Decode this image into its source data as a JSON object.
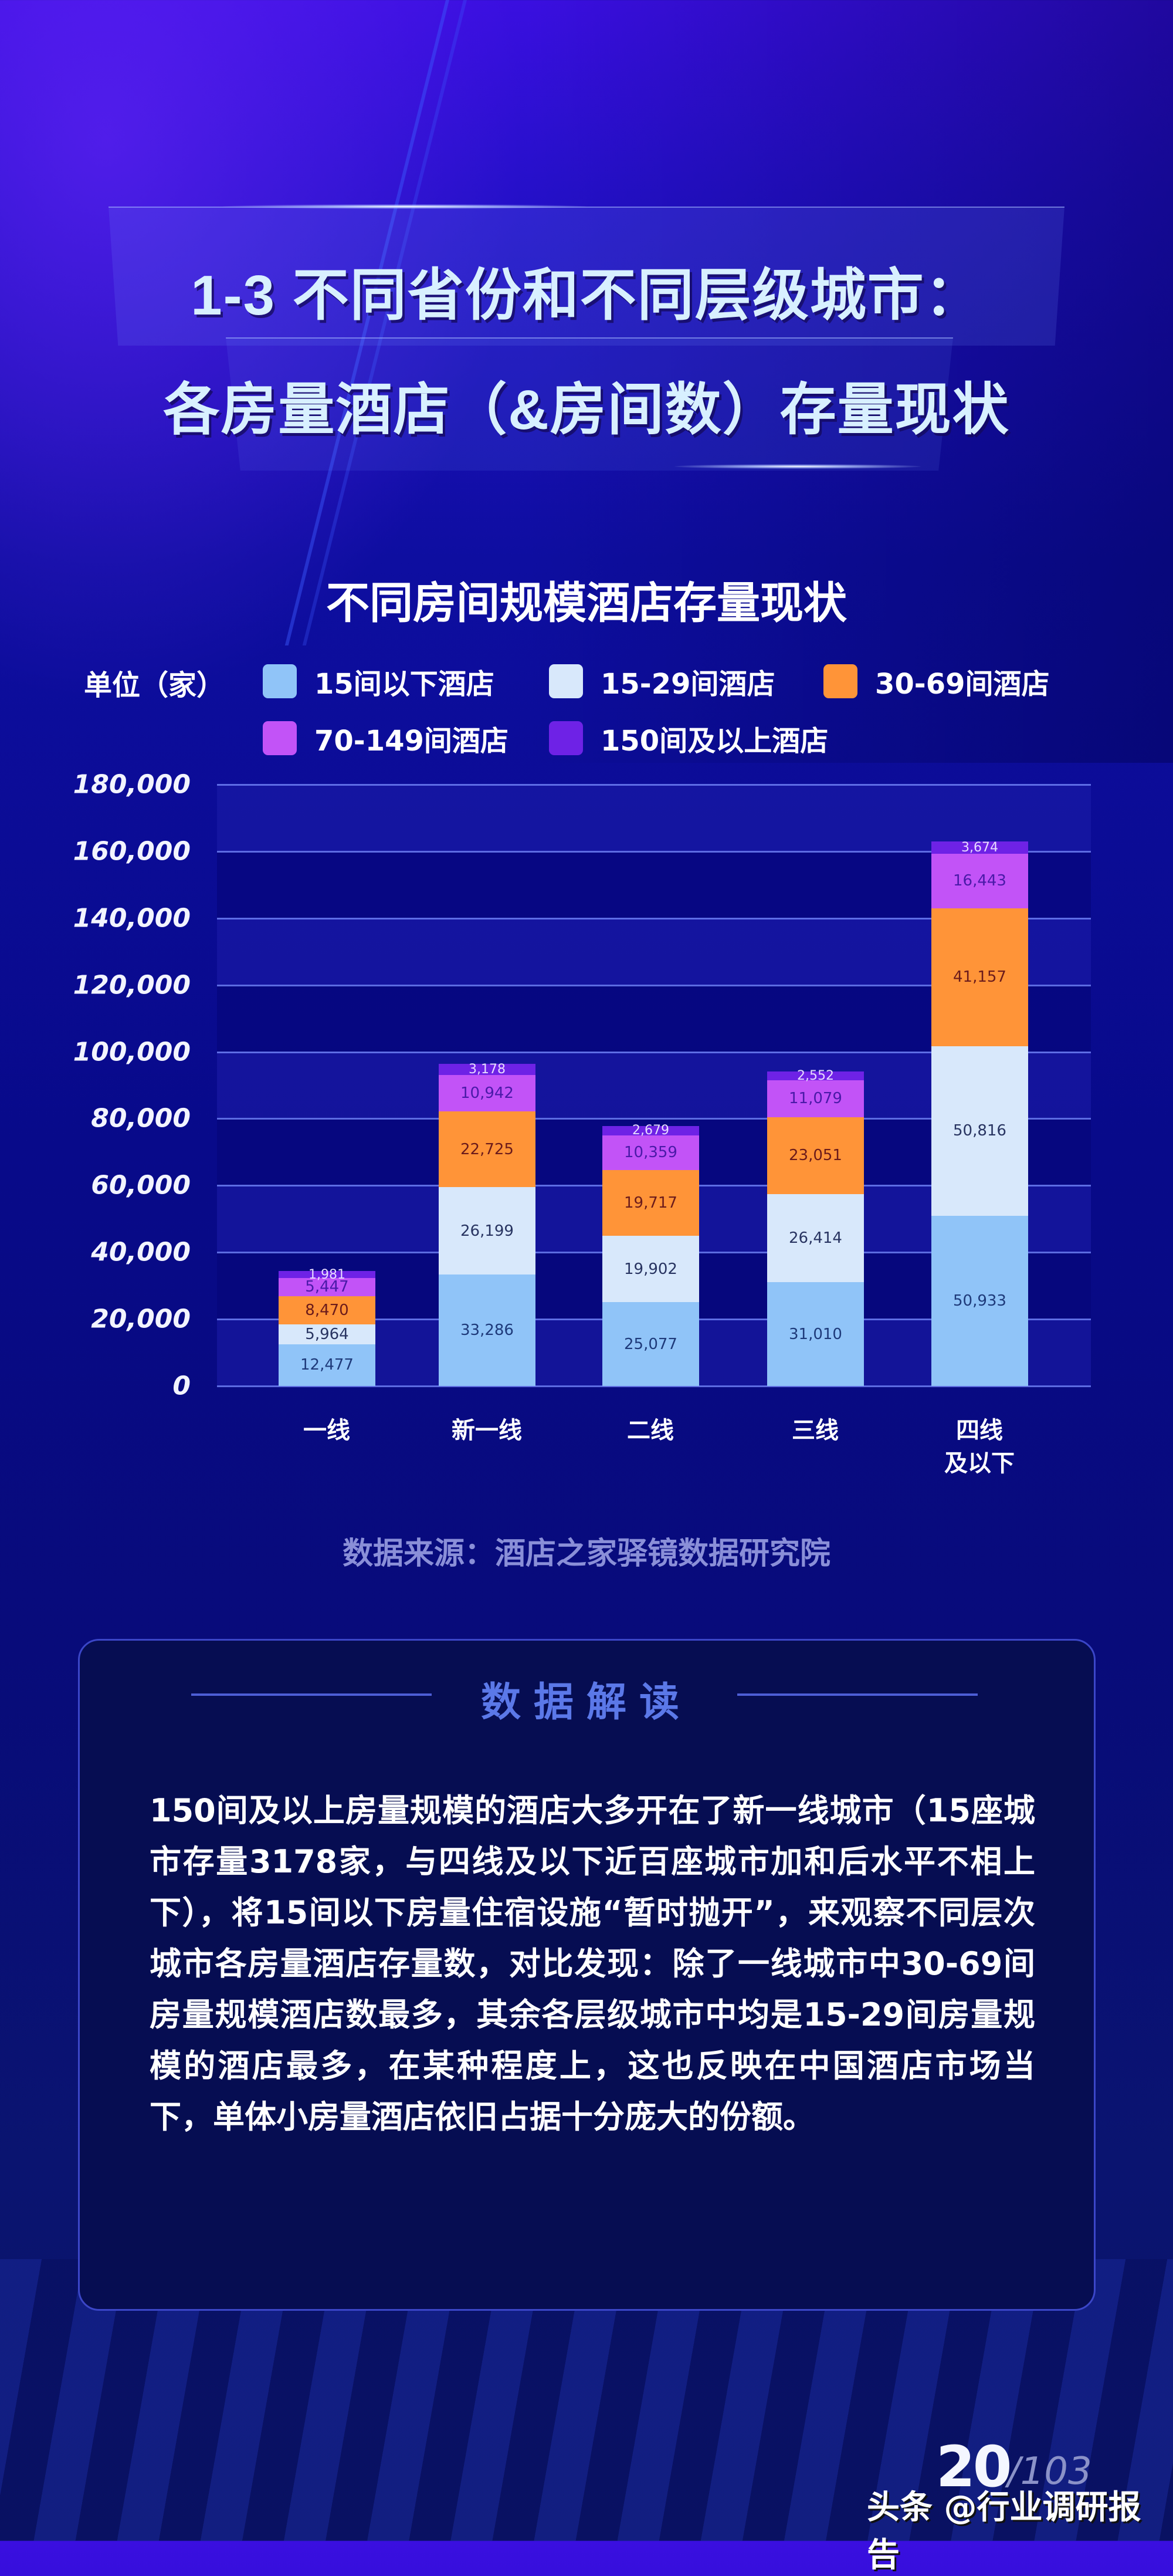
{
  "header": {
    "title_line1": "1-3 不同省份和不同层级城市：",
    "title_line2": "各房量酒店（&房间数）存量现状"
  },
  "chart_data": {
    "type": "bar",
    "stacked": true,
    "title": "不同房间规模酒店存量现状",
    "unit_label": "单位（家）",
    "xlabel": "",
    "ylabel": "",
    "ylim": [
      0,
      180000
    ],
    "yticks": [
      "180,000",
      "160,000",
      "140,000",
      "120,000",
      "100,000",
      "80,000",
      "60,000",
      "40,000",
      "20,000",
      "0"
    ],
    "ytick_values": [
      180000,
      160000,
      140000,
      120000,
      100000,
      80000,
      60000,
      40000,
      20000,
      0
    ],
    "grid": true,
    "legend_position": "top",
    "categories": [
      "一线",
      "新一线",
      "二线",
      "三线",
      "四线\n及以下"
    ],
    "category_lines": [
      [
        "一线"
      ],
      [
        "新一线"
      ],
      [
        "二线"
      ],
      [
        "三线"
      ],
      [
        "四线",
        "及以下"
      ]
    ],
    "series": [
      {
        "name": "15间以下酒店",
        "color": "#90c4f8",
        "text_color": "#1e3a7a",
        "values": [
          12477,
          33286,
          25077,
          31010,
          50933
        ],
        "labels": [
          "12,477",
          "33,286",
          "25,077",
          "31,010",
          "50,933"
        ]
      },
      {
        "name": "15-29间酒店",
        "color": "#d8e8fb",
        "text_color": "#283461",
        "values": [
          5964,
          26199,
          19902,
          26414,
          50816
        ],
        "labels": [
          "5,964",
          "26,199",
          "19,902",
          "26,414",
          "50,816"
        ]
      },
      {
        "name": "30-69间酒店",
        "color": "#ff9438",
        "text_color": "#6b1b1b",
        "values": [
          8470,
          22725,
          19717,
          23051,
          41157
        ],
        "labels": [
          "8,470",
          "22,725",
          "19,717",
          "23,051",
          "41,157"
        ]
      },
      {
        "name": "70-149间酒店",
        "color": "#c253f7",
        "text_color": "#4a1aa8",
        "values": [
          5447,
          10942,
          10359,
          11079,
          16443
        ],
        "labels": [
          "5,447",
          "10,942",
          "10,359",
          "11,079",
          "16,443"
        ]
      },
      {
        "name": "150间及以上酒店",
        "color": "#6e22e6",
        "text_color": "#e8dcff",
        "values": [
          1981,
          3178,
          2679,
          2552,
          3674
        ],
        "labels": [
          "1,981",
          "3,178",
          "2,679",
          "2,552",
          "3,674"
        ]
      }
    ],
    "source": "数据来源：酒店之家驿镜数据研究院"
  },
  "insight": {
    "heading": "数据解读",
    "text": "150间及以上房量规模的酒店大多开在了新一线城市（15座城市存量3178家，与四线及以下近百座城市加和后水平不相上下），将15间以下房量住宿设施“暂时抛开”，来观察不同层次城市各房量酒店存量数，对比发现：除了一线城市中30-69间房量规模酒店数最多，其余各层级城市中均是15-29间房量规模的酒店最多，在某种程度上，这也反映在中国酒店市场当下，单体小房量酒店依旧占据十分庞大的份额。"
  },
  "footer": {
    "page_current": "20",
    "page_total": "/103",
    "watermark": "头条 @行业调研报告"
  },
  "colors": {
    "background_top": "#3a0fe0",
    "background_bottom": "#0b146a",
    "insight_box_bg": "#060d52",
    "insight_border": "#3b46c8",
    "insight_heading": "#5b78e8",
    "source_text": "#8a8fd8"
  }
}
